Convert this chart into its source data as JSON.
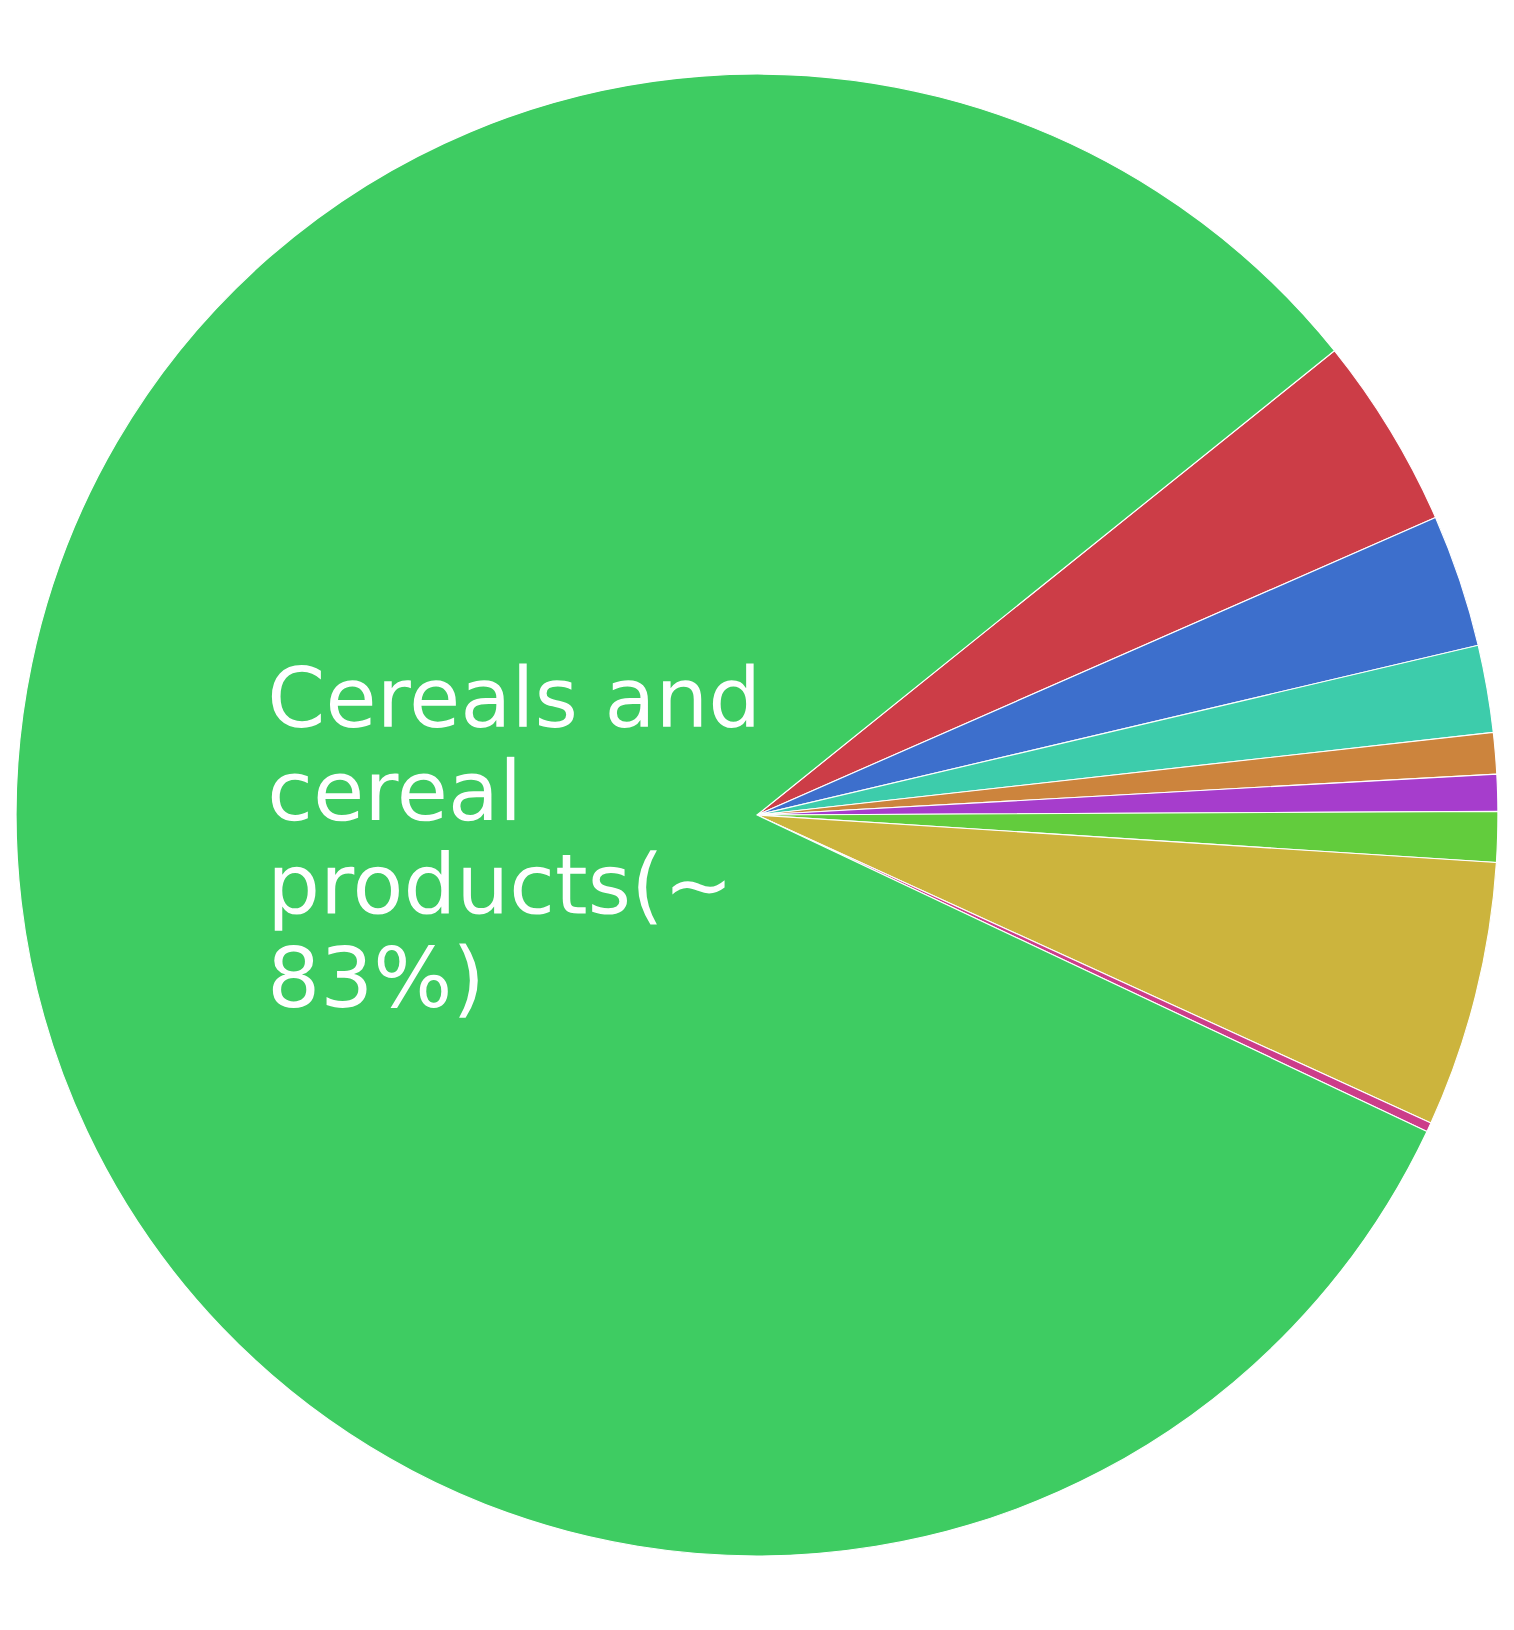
{
  "chart_data": {
    "type": "pie",
    "categories": [
      null,
      null,
      null,
      null,
      null,
      null,
      null,
      null,
      "Cereals and\ncereal\nproducts(~\n83%)"
    ],
    "values": [
      4.2,
      2.9,
      1.9,
      0.9,
      0.8,
      1.1,
      5.8,
      0.2,
      82.2
    ],
    "colors": [
      "#cc3d47",
      "#3d6fcc",
      "#3dccab",
      "#cc843d",
      "#a63dcc",
      "#62cc3d",
      "#ccb43d",
      "#cc3d8a",
      "#3ecc62"
    ],
    "legend": false
  }
}
